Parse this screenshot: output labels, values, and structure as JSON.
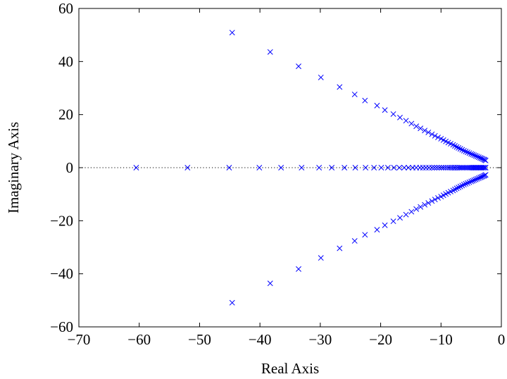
{
  "chart_data": {
    "type": "scatter",
    "title": "",
    "xlabel": "Real Axis",
    "ylabel": "Imaginary Axis",
    "xlim": [
      -70,
      0
    ],
    "ylim": [
      -60,
      60
    ],
    "xticks": [
      -70,
      -60,
      -50,
      -40,
      -30,
      -20,
      -10,
      0
    ],
    "yticks": [
      -60,
      -40,
      -20,
      0,
      20,
      40,
      60
    ],
    "xtick_labels": [
      "−70",
      "−60",
      "−50",
      "−40",
      "−30",
      "−20",
      "−10",
      "0"
    ],
    "ytick_labels": [
      "−60",
      "−40",
      "−20",
      "0",
      "20",
      "40",
      "60"
    ],
    "grid": false,
    "zero_line": true,
    "marker": "x",
    "marker_color": "#0000ff",
    "series": [
      {
        "x": [
          -60.5,
          -52.0,
          -45.1,
          -40.1,
          -36.5,
          -33.1,
          -30.2,
          -28.1,
          -26.0,
          -24.2,
          -22.5,
          -21.1,
          -19.9,
          -18.8,
          -17.8,
          -16.9,
          -16.1,
          -15.4,
          -14.7,
          -14.1,
          -13.5,
          -13.0,
          -12.5,
          -12.0,
          -11.5,
          -11.1,
          -10.7,
          -10.3,
          -9.9,
          -9.55,
          -9.2,
          -8.85,
          -8.5,
          -8.2,
          -7.9,
          -7.6,
          -7.3,
          -7.0,
          -6.75,
          -6.5,
          -6.25,
          -6.0,
          -5.75,
          -5.5,
          -5.25,
          -5.0,
          -4.8,
          -4.6,
          -4.4,
          -4.2,
          -4.0,
          -3.8,
          -3.6,
          -3.4,
          -3.2,
          -3.0,
          -2.8,
          -2.6
        ],
        "y": [
          0,
          0,
          0,
          0,
          0,
          0,
          0,
          0,
          0,
          0,
          0,
          0,
          0,
          0,
          0,
          0,
          0,
          0,
          0,
          0,
          0,
          0,
          0,
          0,
          0,
          0,
          0,
          0,
          0,
          0,
          0,
          0,
          0,
          0,
          0,
          0,
          0,
          0,
          0,
          0,
          0,
          0,
          0,
          0,
          0,
          0,
          0,
          0,
          0,
          0,
          0,
          0,
          0,
          0,
          0,
          0,
          0,
          0
        ]
      },
      {
        "x": [
          -44.6,
          -38.3,
          -33.6,
          -29.9,
          -26.8,
          -24.3,
          -22.6,
          -20.6,
          -19.3,
          -17.9,
          -16.8,
          -15.8,
          -14.9,
          -14.1,
          -13.4,
          -12.7,
          -12.1,
          -11.5,
          -11.0,
          -10.5,
          -10.0,
          -9.6,
          -9.2,
          -8.8,
          -8.4,
          -8.0,
          -7.7,
          -7.4,
          -7.1,
          -6.8,
          -6.5,
          -6.2,
          -5.9,
          -5.6,
          -5.3,
          -5.0,
          -4.75,
          -4.5,
          -4.25,
          -4.0,
          -3.75,
          -3.5,
          -3.3,
          -3.1,
          -2.9,
          -2.75,
          -2.6
        ],
        "y": [
          50.9,
          43.6,
          38.2,
          34.0,
          30.4,
          27.6,
          25.3,
          23.4,
          21.7,
          20.2,
          18.9,
          17.7,
          16.6,
          15.6,
          14.8,
          14.0,
          13.3,
          12.6,
          12.0,
          11.4,
          10.9,
          10.4,
          9.9,
          9.45,
          9.0,
          8.6,
          8.2,
          7.8,
          7.45,
          7.1,
          6.75,
          6.4,
          6.1,
          5.8,
          5.5,
          5.2,
          4.95,
          4.7,
          4.45,
          4.2,
          3.95,
          3.7,
          3.5,
          3.3,
          3.1,
          2.9,
          2.7
        ]
      },
      {
        "x": [
          -44.6,
          -38.3,
          -33.6,
          -29.9,
          -26.8,
          -24.3,
          -22.6,
          -20.6,
          -19.3,
          -17.9,
          -16.8,
          -15.8,
          -14.9,
          -14.1,
          -13.4,
          -12.7,
          -12.1,
          -11.5,
          -11.0,
          -10.5,
          -10.0,
          -9.6,
          -9.2,
          -8.8,
          -8.4,
          -8.0,
          -7.7,
          -7.4,
          -7.1,
          -6.8,
          -6.5,
          -6.2,
          -5.9,
          -5.6,
          -5.3,
          -5.0,
          -4.75,
          -4.5,
          -4.25,
          -4.0,
          -3.75,
          -3.5,
          -3.3,
          -3.1,
          -2.9,
          -2.75,
          -2.6
        ],
        "y": [
          -50.9,
          -43.6,
          -38.2,
          -34.0,
          -30.4,
          -27.6,
          -25.3,
          -23.4,
          -21.7,
          -20.2,
          -18.9,
          -17.7,
          -16.6,
          -15.6,
          -14.8,
          -14.0,
          -13.3,
          -12.6,
          -12.0,
          -11.4,
          -10.9,
          -10.4,
          -9.9,
          -9.45,
          -9.0,
          -8.6,
          -8.2,
          -7.8,
          -7.45,
          -7.1,
          -6.75,
          -6.4,
          -6.1,
          -5.8,
          -5.5,
          -5.2,
          -4.95,
          -4.7,
          -4.45,
          -4.2,
          -3.95,
          -3.7,
          -3.5,
          -3.3,
          -3.1,
          -2.9,
          -2.7
        ]
      }
    ]
  }
}
